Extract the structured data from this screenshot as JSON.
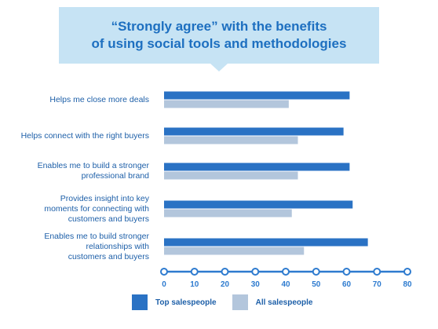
{
  "chart_data": {
    "type": "bar",
    "orientation": "horizontal",
    "title": "“Strongly agree” with the benefits of using social tools and methodologies",
    "title_lines": [
      "“Strongly agree” with the benefits",
      "of using social tools and methodologies"
    ],
    "categories": [
      "Helps me close more deals",
      "Helps connect with the right buyers",
      "Enables me to build a stronger professional brand",
      "Provides insight into key moments for connecting with customers and buyers",
      "Enables me to build stronger relationships with customers and buyers"
    ],
    "category_lines": [
      [
        "Helps me close more deals"
      ],
      [
        "Helps connect with the right buyers"
      ],
      [
        "Enables me to build a stronger",
        "professional brand"
      ],
      [
        "Provides insight into key",
        "moments for connecting with",
        "customers and buyers"
      ],
      [
        "Enables me to build stronger",
        "relationships with",
        "customers and buyers"
      ]
    ],
    "series": [
      {
        "name": "Top salespeople",
        "color": "#2a72c4",
        "values": [
          61,
          59,
          61,
          62,
          67
        ]
      },
      {
        "name": "All salespeople",
        "color": "#b3c6dc",
        "values": [
          41,
          44,
          44,
          42,
          46
        ]
      }
    ],
    "xlim": [
      0,
      80
    ],
    "xticks": [
      "0",
      "10",
      "20",
      "30",
      "40",
      "50",
      "60",
      "70",
      "80"
    ],
    "axis_color": "#2e7bcf",
    "legend_position": "bottom"
  }
}
